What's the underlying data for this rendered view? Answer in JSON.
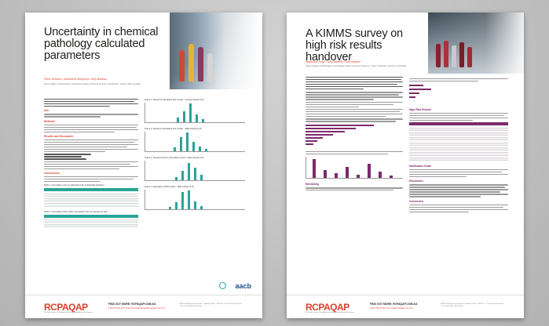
{
  "colors": {
    "accent_red": "#e0412e",
    "teal": "#2aa39a",
    "purple": "#7b2a6b",
    "aacb_blue": "#1f4e8c"
  },
  "left_poster": {
    "title": "Uncertainty in chemical pathology calculated parameters",
    "authors": "Peter Graham, Samantha Shepherd, Tony Badrick",
    "affiliation": "Royal College of Pathologists of Australasia Quality Assurance Programs (RCPAQAP), Sydney, NSW, Australia",
    "sections": {
      "aim": "Aim",
      "methods": "Methods",
      "results": "Results and Discussion",
      "conclusions": "Conclusions"
    },
    "figures": {
      "fig1": "Figure 1: Spread of Calculated LDL results – Female Sample 5-10",
      "fig2": "Figure 2: Spread of Calculated LDL results – Male sample 5-10",
      "fig3": "Figure 3: Spread of Serum Osmolality results – Male sample 5-10",
      "fig4": "Figure 4: Equivalent eGFR results – Male sample 5-10"
    },
    "table1": "Table 1: Cumulative errors in calculated LDL (Friedewald equation)",
    "table2": "Table 2: Osmolality results within acceptable limits as reported by QAP",
    "footer": {
      "logo": "RCPAQAP",
      "logo_sub": "The Royal College of Pathologists of Australasia Quality Assurance Programs",
      "find_more": "FIND OUT MORE: RCPAQAP.COM.AU",
      "link": "1300 78 29 20 | chemical.pathology@rcpaqap.com.au",
      "small": "RCPA Quality Assurance Programs · Building 8 Level 2 · Suite 201 · 171 Victoria Parade Street · St Leonards NSW 2065 Australia"
    },
    "partner_logo": "aacb"
  },
  "right_poster": {
    "title": "A KIMMS survey on high risk results handover",
    "authors": "Stephanie Gay¹, Tony Badrick¹, Ken Sikaris²",
    "affiliation": "¹Royal College of Pathologists of Australasia Quality Assurance Programs · ²Sonic Healthcare, Melbourne, Australia",
    "sections": {
      "high_risk": "High Risk Results",
      "notification": "Notification Chain",
      "discussion": "Discussion",
      "conclusion": "Conclusion",
      "monitoring": "Monitoring"
    },
    "footer": {
      "logo": "RCPAQAP",
      "logo_sub": "The Royal College of Pathologists of Australasia Quality Assurance Programs",
      "find_more": "FIND OUT MORE: RCPAQAP.COM.AU",
      "link": "1300 78 29 20 | kimms@rcpaqap.com.au",
      "small": "RCPA Quality Assurance Programs · Building 8 Level 2 · Suite 201 · 171 Victoria Parade Street · St Leonards NSW 2065 Australia"
    }
  }
}
